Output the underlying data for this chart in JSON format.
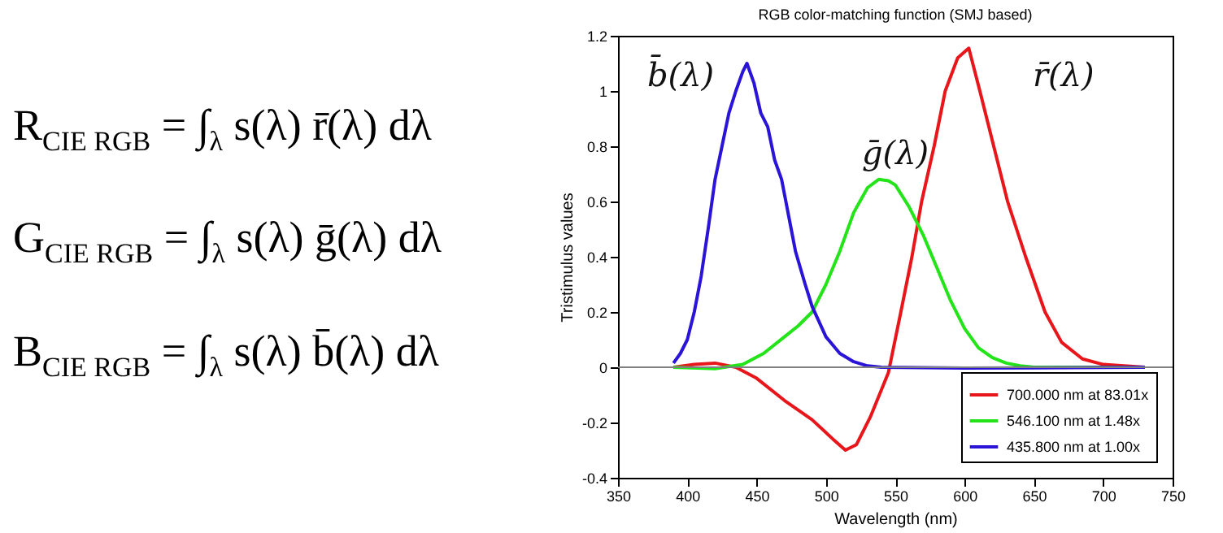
{
  "chart_data": {
    "type": "line",
    "title": "RGB color-matching function (SMJ based)",
    "xlabel": "Wavelength (nm)",
    "ylabel": "Tristimulus values",
    "xlim": [
      350,
      750
    ],
    "xticks": [
      350,
      400,
      450,
      500,
      550,
      600,
      650,
      700,
      750
    ],
    "ylim": [
      -0.4,
      1.2
    ],
    "yticks": [
      -0.4,
      -0.2,
      0,
      0.2,
      0.4,
      0.6,
      0.8,
      1,
      1.2
    ],
    "legend": "bottom right",
    "ref_lines": [
      {
        "axis": "y",
        "value": 0,
        "color": "#808080"
      }
    ],
    "annotations": [
      "R$_{CIE RGB}$ = ∫$_{λ}$ s(λ) r̄(λ) dλ",
      "G$_{CIE RGB}$ = ∫$_{λ}$ s(λ) ḡ(λ) dλ",
      "B$_{CIE RGB}$ = ∫$_{λ}$ s(λ) b̄(λ) dλ",
      "b̄(λ)",
      "ḡ(λ)",
      "r̄(λ)"
    ],
    "series": [
      {
        "name": "700.000 nm at 83.01x",
        "color": "#e8161b",
        "x": [
          390,
          405,
          420,
          435,
          450,
          470,
          490,
          505,
          514,
          522,
          532,
          545,
          554,
          562,
          569,
          578,
          586,
          595,
          603,
          611,
          621,
          631,
          644,
          658,
          670,
          685,
          700,
          730
        ],
        "values": [
          0,
          0.01,
          0.015,
          0.0,
          -0.04,
          -0.12,
          -0.19,
          -0.26,
          -0.3,
          -0.28,
          -0.18,
          -0.02,
          0.2,
          0.4,
          0.6,
          0.8,
          1.0,
          1.12,
          1.155,
          1.0,
          0.8,
          0.6,
          0.4,
          0.2,
          0.09,
          0.03,
          0.01,
          0
        ]
      },
      {
        "name": "546.100 nm at  1.48x",
        "color": "#22e418",
        "x": [
          390,
          420,
          440,
          455,
          470,
          480,
          490,
          500,
          510,
          520,
          530,
          538,
          545,
          550,
          560,
          570,
          580,
          590,
          600,
          610,
          620,
          630,
          640,
          650,
          730
        ],
        "values": [
          0,
          -0.005,
          0.01,
          0.05,
          0.11,
          0.15,
          0.2,
          0.3,
          0.42,
          0.56,
          0.65,
          0.68,
          0.675,
          0.66,
          0.58,
          0.48,
          0.36,
          0.24,
          0.14,
          0.07,
          0.035,
          0.015,
          0.005,
          0,
          0
        ]
      },
      {
        "name": "435.800 nm at  1.00x",
        "color": "#2a14d8",
        "x": [
          390,
          395,
          400,
          405,
          410,
          415,
          420,
          425,
          430,
          435,
          440,
          443,
          448,
          453,
          458,
          463,
          468,
          473,
          478,
          485,
          490,
          500,
          510,
          520,
          530,
          540,
          600,
          730
        ],
        "values": [
          0.015,
          0.05,
          0.1,
          0.2,
          0.33,
          0.5,
          0.68,
          0.8,
          0.92,
          1.0,
          1.07,
          1.1,
          1.03,
          0.92,
          0.87,
          0.75,
          0.68,
          0.55,
          0.42,
          0.3,
          0.22,
          0.11,
          0.05,
          0.02,
          0.005,
          0,
          -0.003,
          0
        ]
      }
    ]
  }
}
